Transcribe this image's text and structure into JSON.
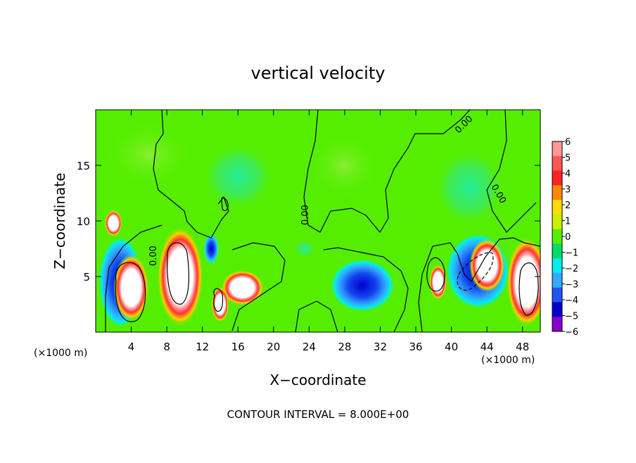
{
  "chart_data": {
    "type": "heatmap",
    "title": "vertical velocity",
    "xlabel": "X−coordinate",
    "ylabel": "Z−coordinate",
    "x_unit_left": "(×1000 m)",
    "x_unit_right": "(×1000 m)",
    "footer": "CONTOUR INTERVAL = 8.000E+00",
    "xlim": [
      0,
      50
    ],
    "ylim": [
      0,
      20
    ],
    "x_ticks": [
      4,
      8,
      12,
      16,
      20,
      24,
      28,
      32,
      36,
      40,
      44,
      48
    ],
    "y_ticks": [
      5,
      10,
      15
    ],
    "colorbar": {
      "ticks": [
        6,
        5,
        4,
        3,
        2,
        1,
        0,
        -1,
        -2,
        -3,
        -4,
        -5,
        -6
      ],
      "colors": [
        "#ff9999",
        "#ff5555",
        "#ff2222",
        "#ff8800",
        "#ffdd00",
        "#ccee00",
        "#55ee00",
        "#00dd66",
        "#00eeee",
        "#33aaff",
        "#2255ee",
        "#0000cc",
        "#8800cc"
      ]
    },
    "contour_labels": [
      "0.00",
      "0.00",
      "0.00",
      "0.00"
    ],
    "features": [
      {
        "kind": "updraft",
        "x": 4,
        "z": 4,
        "rx": 2,
        "rz": 3
      },
      {
        "kind": "downdraft",
        "x": 2.8,
        "z": 4.5,
        "rx": 2.4,
        "rz": 4
      },
      {
        "kind": "updraft",
        "x": 9.5,
        "z": 5,
        "rx": 2.6,
        "rz": 4.5
      },
      {
        "kind": "updraft",
        "x": 2,
        "z": 9.8,
        "rx": 1,
        "rz": 1.2
      },
      {
        "kind": "downdraft",
        "x": 13,
        "z": 7.5,
        "rx": 0.8,
        "rz": 1.3
      },
      {
        "kind": "updraft",
        "x": 16.5,
        "z": 4,
        "rx": 2.4,
        "rz": 1.6
      },
      {
        "kind": "updraft",
        "x": 14,
        "z": 2.5,
        "rx": 1,
        "rz": 1.6
      },
      {
        "kind": "downdraft",
        "x": 30,
        "z": 4.2,
        "rx": 3.5,
        "rz": 2.3
      },
      {
        "kind": "weak-down",
        "x": 23.5,
        "z": 7.5,
        "rx": 1.2,
        "rz": 0.8
      },
      {
        "kind": "updraft",
        "x": 38.5,
        "z": 4.5,
        "rx": 1,
        "rz": 1.6
      },
      {
        "kind": "downdraft",
        "x": 43,
        "z": 5.5,
        "rx": 3.5,
        "rz": 3.3
      },
      {
        "kind": "updraft",
        "x": 44,
        "z": 6,
        "rx": 2,
        "rz": 2.4
      },
      {
        "kind": "updraft",
        "x": 48.5,
        "z": 4.5,
        "rx": 2.3,
        "rz": 4
      },
      {
        "kind": "weak-down",
        "x": 16,
        "z": 14,
        "rx": 4,
        "rz": 3
      },
      {
        "kind": "weak-down",
        "x": 42,
        "z": 13,
        "rx": 4,
        "rz": 3.5
      },
      {
        "kind": "weak-up",
        "x": 28,
        "z": 15,
        "rx": 4,
        "rz": 3
      },
      {
        "kind": "weak-up",
        "x": 6,
        "z": 16,
        "rx": 5,
        "rz": 3
      }
    ]
  }
}
